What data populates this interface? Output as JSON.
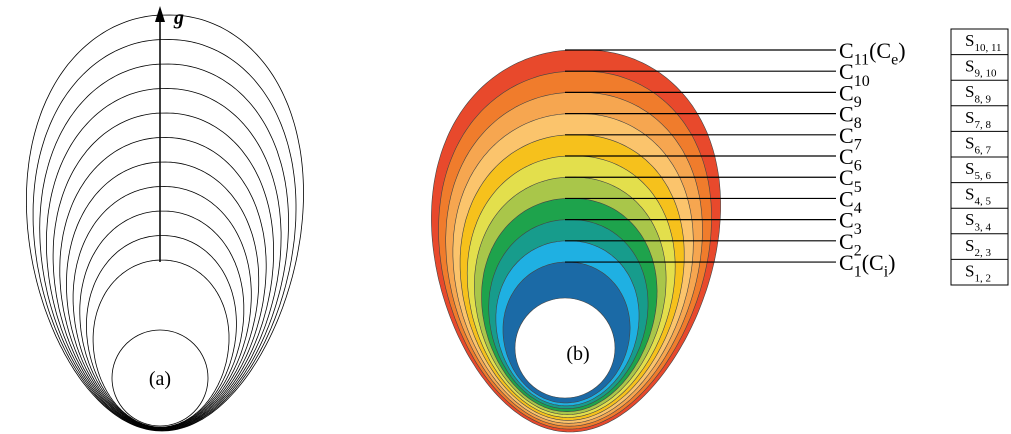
{
  "panel_a": {
    "label": "(a)",
    "axis_label": "g"
  },
  "panel_b": {
    "label": "(b)",
    "contour_labels": [
      {
        "main": "C",
        "sub": "11",
        "note": "(C",
        "note_sub": "e",
        "note_end": ")"
      },
      {
        "main": "C",
        "sub": "10"
      },
      {
        "main": "C",
        "sub": "9"
      },
      {
        "main": "C",
        "sub": "8"
      },
      {
        "main": "C",
        "sub": "7"
      },
      {
        "main": "C",
        "sub": "6"
      },
      {
        "main": "C",
        "sub": "5"
      },
      {
        "main": "C",
        "sub": "4"
      },
      {
        "main": "C",
        "sub": "3"
      },
      {
        "main": "C",
        "sub": "2"
      },
      {
        "main": "C",
        "sub": "1",
        "note": "(C",
        "note_sub": "i",
        "note_end": ")"
      }
    ],
    "fill_colors": [
      "#1b6aa6",
      "#1fb0e2",
      "#179c8c",
      "#1ea34c",
      "#a9c64a",
      "#e3df4c",
      "#f6c11c",
      "#fbc46c",
      "#f6a650",
      "#f07c2c",
      "#e8492c"
    ]
  },
  "region_labels": [
    {
      "main": "S",
      "sub": "10, 11"
    },
    {
      "main": "S",
      "sub": "9, 10"
    },
    {
      "main": "S",
      "sub": "8, 9"
    },
    {
      "main": "S",
      "sub": "7, 8"
    },
    {
      "main": "S",
      "sub": "6, 7"
    },
    {
      "main": "S",
      "sub": "5, 6"
    },
    {
      "main": "S",
      "sub": "4, 5"
    },
    {
      "main": "S",
      "sub": "3, 4"
    },
    {
      "main": "S",
      "sub": "2, 3"
    },
    {
      "main": "S",
      "sub": "1, 2"
    }
  ]
}
